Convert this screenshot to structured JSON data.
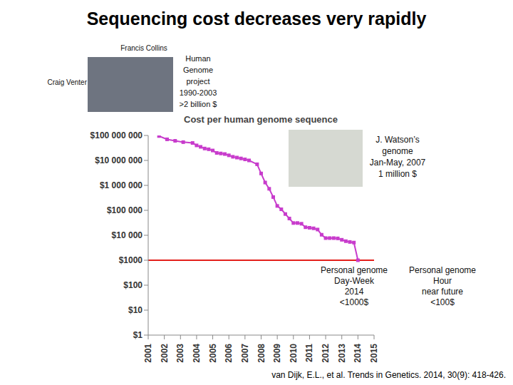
{
  "title": "Sequencing cost decreases very rapidly",
  "photo_captions": [
    "Francis Collins",
    "Craig Venter"
  ],
  "annotations": [
    {
      "lines": [
        "Human",
        "Genome",
        "project",
        "1990-2003",
        ">2 billion $"
      ]
    },
    {
      "lines": [
        "J. Watson’s",
        "genome",
        "Jan-May, 2007",
        "1 million $"
      ]
    },
    {
      "lines": [
        "Personal genome",
        "Day-Week",
        "2014",
        "<1000$"
      ]
    },
    {
      "lines": [
        "Personal genome",
        "Hour",
        "near future",
        "<100$"
      ]
    }
  ],
  "citation": "van Dijk, E.L., et al. Trends in Genetics. 2014, 30(9): 418-426.",
  "chart_data": {
    "type": "line",
    "title": "Cost per human genome sequence",
    "x": [
      2001.67,
      2002.17,
      2002.67,
      2003.17,
      2003.75,
      2004.0,
      2004.25,
      2004.5,
      2004.75,
      2005.0,
      2005.25,
      2005.5,
      2005.75,
      2006.0,
      2006.25,
      2006.5,
      2006.75,
      2007.0,
      2007.25,
      2007.75,
      2008.0,
      2008.25,
      2008.5,
      2008.75,
      2009.0,
      2009.25,
      2009.5,
      2009.75,
      2010.0,
      2010.25,
      2010.5,
      2010.75,
      2011.0,
      2011.25,
      2011.5,
      2011.75,
      2012.0,
      2012.25,
      2012.5,
      2012.75,
      2013.0,
      2013.25,
      2013.5,
      2013.75,
      2014.0
    ],
    "values": [
      95000000,
      70000000,
      61000000,
      54000000,
      50000000,
      40000000,
      35000000,
      30000000,
      28000000,
      25000000,
      20000000,
      19000000,
      18000000,
      16000000,
      14000000,
      13000000,
      12000000,
      11000000,
      10000000,
      7000000,
      3000000,
      1300000,
      730000,
      340000,
      150000,
      110000,
      71000,
      47000,
      31000,
      31000,
      29000,
      21000,
      20000,
      19000,
      17000,
      10500,
      7700,
      7700,
      7700,
      7500,
      6600,
      5800,
      5400,
      5100,
      1000
    ],
    "color": "#c83ccc",
    "marker": "square",
    "log": "y",
    "grid": false,
    "xlim": [
      2001,
      2015
    ],
    "xticks": [
      2001,
      2002,
      2003,
      2004,
      2005,
      2006,
      2007,
      2008,
      2009,
      2010,
      2011,
      2012,
      2013,
      2014,
      2015
    ],
    "ylim": [
      1,
      100000000
    ],
    "yticks": [
      {
        "value": 1,
        "label": "$1"
      },
      {
        "value": 10,
        "label": "$10"
      },
      {
        "value": 100,
        "label": "$100"
      },
      {
        "value": 1000,
        "label": "$1000"
      },
      {
        "value": 10000,
        "label": "$10 000"
      },
      {
        "value": 100000,
        "label": "$100 000"
      },
      {
        "value": 1000000,
        "label": "$1 000 000"
      },
      {
        "value": 10000000,
        "label": "$10 000 000"
      },
      {
        "value": 100000000,
        "label": "$100 000 000"
      }
    ],
    "reference_line": {
      "y": 1000,
      "color": "#e3201c"
    }
  }
}
